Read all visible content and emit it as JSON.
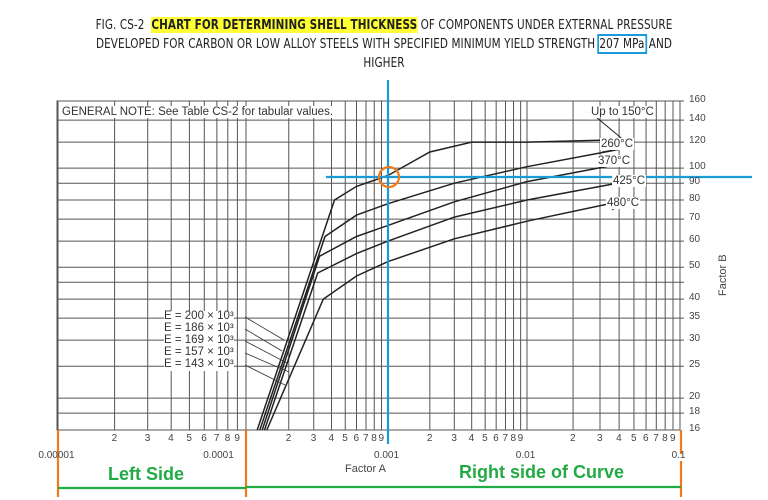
{
  "title": {
    "fig_label": "FIG. CS-2",
    "highlighted": "CHART FOR DETERMINING SHELL THICKNESS",
    "line1_rest": "OF COMPONENTS UNDER EXTERNAL PRESSURE",
    "line2_pre": "DEVELOPED FOR CARBON OR LOW ALLOY STEELS WITH SPECIFIED MINIMUM YIELD STRENGTH",
    "boxed": "207 MPa",
    "line2_post": "AND",
    "line3": "HIGHER"
  },
  "general_note": "GENERAL NOTE: See Table CS-2 for tabular values.",
  "annotations": {
    "left_side": "Left Side",
    "right_side": "Right side of Curve"
  },
  "chart_data": {
    "type": "line",
    "title": "FIG. CS-2 CHART FOR DETERMINING SHELL THICKNESS OF COMPONENTS UNDER EXTERNAL PRESSURE DEVELOPED FOR CARBON OR LOW ALLOY STEELS WITH SPECIFIED MINIMUM YIELD STRENGTH 207 MPa AND HIGHER",
    "xlabel": "Factor A",
    "ylabel": "Factor B",
    "xscale": "log",
    "yscale": "log",
    "xlim": [
      1e-05,
      0.1
    ],
    "ylim": [
      16,
      160
    ],
    "grid": true,
    "x_decade_labels": [
      "0.00001",
      "0.0001",
      "0.001",
      "0.01",
      "0.1"
    ],
    "x_minor_tick_labels": [
      "2",
      "3",
      "4",
      "5",
      "6",
      "7",
      "8",
      "9"
    ],
    "y_tick_labels": [
      "160",
      "140",
      "120",
      "100",
      "90",
      "80",
      "70",
      "60",
      "50",
      "40",
      "35",
      "30",
      "25",
      "20",
      "18",
      "16"
    ],
    "series": [
      {
        "name": "Up to 150°C",
        "points": [
          [
            0.00012,
            16
          ],
          [
            0.00042,
            80
          ],
          [
            0.0006,
            88
          ],
          [
            0.001,
            95
          ],
          [
            0.002,
            112
          ],
          [
            0.004,
            120
          ],
          [
            0.01,
            120
          ],
          [
            0.04,
            122
          ]
        ]
      },
      {
        "name": "260°C",
        "points": [
          [
            0.000125,
            16
          ],
          [
            0.00036,
            62
          ],
          [
            0.0006,
            72
          ],
          [
            0.001,
            78
          ],
          [
            0.003,
            90
          ],
          [
            0.01,
            101
          ],
          [
            0.04,
            114
          ]
        ]
      },
      {
        "name": "370°C",
        "points": [
          [
            0.00013,
            16
          ],
          [
            0.00033,
            54
          ],
          [
            0.0006,
            62
          ],
          [
            0.001,
            67
          ],
          [
            0.003,
            79
          ],
          [
            0.01,
            91
          ],
          [
            0.045,
            104
          ]
        ]
      },
      {
        "name": "425°C",
        "points": [
          [
            0.000135,
            16
          ],
          [
            0.00032,
            48
          ],
          [
            0.0006,
            55
          ],
          [
            0.001,
            60
          ],
          [
            0.003,
            71
          ],
          [
            0.01,
            80
          ],
          [
            0.05,
            92
          ]
        ]
      },
      {
        "name": "480°C",
        "points": [
          [
            0.00014,
            16
          ],
          [
            0.00035,
            40
          ],
          [
            0.0006,
            47
          ],
          [
            0.001,
            52
          ],
          [
            0.003,
            61
          ],
          [
            0.01,
            69
          ],
          [
            0.045,
            80
          ]
        ]
      }
    ],
    "elastic_modulus_labels": [
      "E = 200 × 10³",
      "E = 186 × 10³",
      "E = 169 × 10³",
      "E = 157 × 10³",
      "E = 143 × 10³"
    ],
    "overlay": {
      "vertical_line_factor_a": 0.001,
      "horizontal_line_factor_b": 94,
      "circle_at": [
        0.001,
        94
      ],
      "colors": {
        "guide_lines": "#1a9ad8",
        "circle": "#f07a1a",
        "side_markers": "#f07a1a",
        "side_brackets": "#22aa44",
        "highlight": "#ffff33"
      }
    }
  }
}
